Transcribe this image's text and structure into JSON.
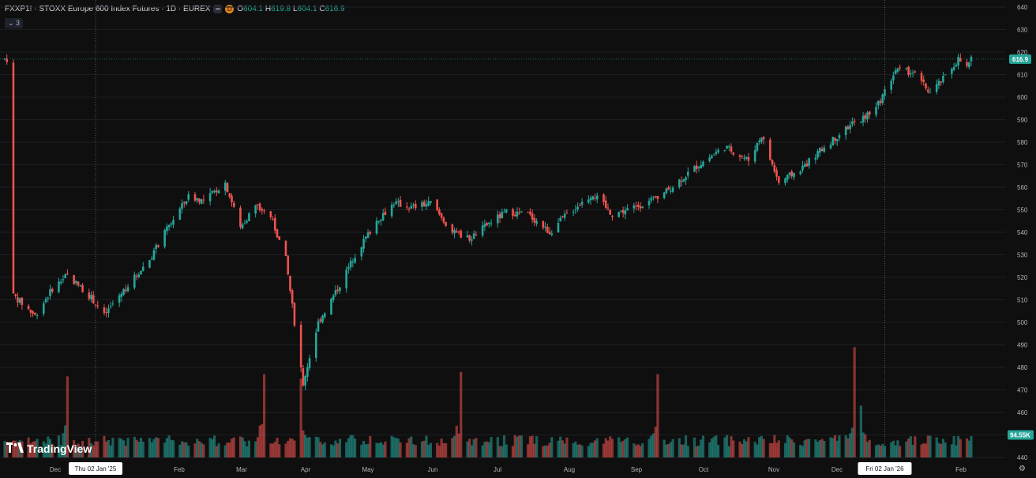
{
  "legend": {
    "symbol": "FXXP1! · STOXX Europe 600 Index Futures · 1D · EUREX",
    "badge_d": "D",
    "open_label": "O",
    "open": "604.1",
    "high_label": "H",
    "high": "619.8",
    "low_label": "L",
    "low": "604.1",
    "close_label": "C",
    "close": "616.9"
  },
  "indicators_toggle": "3",
  "branding": "TradingView",
  "colors": {
    "up": "#26a69a",
    "down": "#ef5350",
    "background": "#0f0f0f",
    "grid": "#1c1f26",
    "crosshair": "#6a6d78"
  },
  "chart_data": {
    "type": "candlestick",
    "title": "FXXP1! · STOXX Europe 600 Index Futures · 1D · EUREX",
    "ylim": [
      440,
      640
    ],
    "y_ticks": [
      640,
      630,
      620,
      610,
      600,
      590,
      580,
      570,
      560,
      550,
      540,
      530,
      520,
      510,
      500,
      490,
      480,
      470,
      460,
      450,
      440
    ],
    "x_ticks": [
      "Dec",
      "Feb",
      "Mar",
      "Apr",
      "May",
      "Jun",
      "Jul",
      "Aug",
      "Sep",
      "Oct",
      "Nov",
      "Dec",
      "Feb"
    ],
    "crosshair_labels": [
      "Thu 02 Jan '25",
      "Fri 02 Jan '26"
    ],
    "last_price": "616.9",
    "last_volume": "94.55K",
    "price_path": [
      [
        "2024-11-25",
        512
      ],
      [
        "2024-12-05",
        503
      ],
      [
        "2024-12-13",
        515
      ],
      [
        "2024-12-20",
        521
      ],
      [
        "2024-12-31",
        511
      ],
      [
        "2025-01-06",
        503
      ],
      [
        "2025-01-13",
        512
      ],
      [
        "2025-01-20",
        520
      ],
      [
        "2025-01-27",
        528
      ],
      [
        "2025-02-05",
        543
      ],
      [
        "2025-02-14",
        556
      ],
      [
        "2025-02-21",
        554
      ],
      [
        "2025-03-03",
        562
      ],
      [
        "2025-03-10",
        542
      ],
      [
        "2025-03-17",
        552
      ],
      [
        "2025-03-24",
        547
      ],
      [
        "2025-03-31",
        528
      ],
      [
        "2025-04-04",
        500
      ],
      [
        "2025-04-08",
        473
      ],
      [
        "2025-04-15",
        500
      ],
      [
        "2025-04-24",
        515
      ],
      [
        "2025-05-02",
        530
      ],
      [
        "2025-05-12",
        545
      ],
      [
        "2025-05-20",
        553
      ],
      [
        "2025-05-28",
        551
      ],
      [
        "2025-06-06",
        553
      ],
      [
        "2025-06-16",
        540
      ],
      [
        "2025-06-24",
        537
      ],
      [
        "2025-07-03",
        544
      ],
      [
        "2025-07-11",
        549
      ],
      [
        "2025-07-21",
        548
      ],
      [
        "2025-07-31",
        540
      ],
      [
        "2025-08-08",
        548
      ],
      [
        "2025-08-20",
        557
      ],
      [
        "2025-08-29",
        548
      ],
      [
        "2025-09-08",
        551
      ],
      [
        "2025-09-19",
        555
      ],
      [
        "2025-09-29",
        563
      ],
      [
        "2025-10-08",
        570
      ],
      [
        "2025-10-20",
        578
      ],
      [
        "2025-10-31",
        572
      ],
      [
        "2025-11-06",
        583
      ],
      [
        "2025-11-14",
        562
      ],
      [
        "2025-11-24",
        568
      ],
      [
        "2025-12-04",
        577
      ],
      [
        "2025-12-15",
        586
      ],
      [
        "2025-12-29",
        595
      ],
      [
        "2026-01-07",
        612
      ],
      [
        "2026-01-15",
        611
      ],
      [
        "2026-01-23",
        602
      ],
      [
        "2026-01-30",
        609
      ],
      [
        "2026-02-05",
        617
      ],
      [
        "2026-02-09",
        613
      ],
      [
        "2026-02-11",
        616.9
      ]
    ],
    "volume_spikes": [
      [
        "2024-12-20",
        476
      ],
      [
        "2025-03-21",
        477
      ],
      [
        "2025-04-07",
        475
      ],
      [
        "2025-06-20",
        478
      ],
      [
        "2025-09-19",
        477
      ],
      [
        "2025-12-19",
        489
      ],
      [
        "2025-12-22",
        463
      ]
    ]
  }
}
